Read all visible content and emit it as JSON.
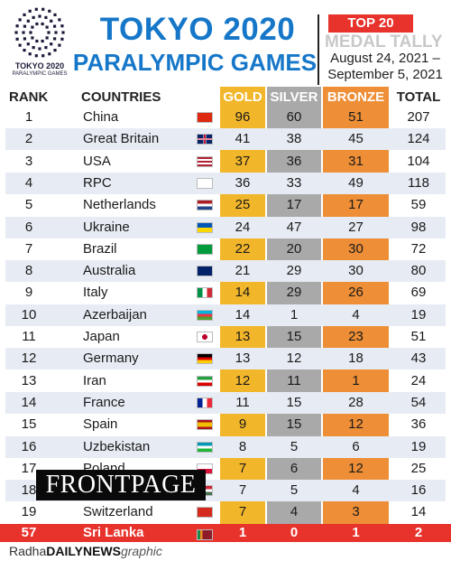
{
  "logo": {
    "line1": "TOKYO 2020",
    "line2": "PARALYMPIC GAMES",
    "ring_color": "#1b1b3a"
  },
  "title": {
    "line1": "TOKYO 2020",
    "line2": "PARALYMPIC GAMES"
  },
  "badge": {
    "top": "TOP 20",
    "subtitle": "MEDAL TALLY",
    "dates_line1": "August 24, 2021 –",
    "dates_line2": "September 5, 2021"
  },
  "colors": {
    "title": "#1677c9",
    "gold": "#f2b62a",
    "silver": "#a9a9a9",
    "bronze": "#ee8e36",
    "highlight": "#e8322c",
    "band": "#e7ecf4"
  },
  "chart_data": {
    "type": "table",
    "columns": [
      "RANK",
      "COUNTRIES",
      "GOLD",
      "SILVER",
      "BRONZE",
      "TOTAL"
    ],
    "rows": [
      {
        "rank": "1",
        "country": "China",
        "flag": "china-flag",
        "gold": 96,
        "silver": 60,
        "bronze": 51,
        "total": 207
      },
      {
        "rank": "2",
        "country": "Great Britain",
        "flag": "uk-flag",
        "gold": 41,
        "silver": 38,
        "bronze": 45,
        "total": 124
      },
      {
        "rank": "3",
        "country": "USA",
        "flag": "usa-flag",
        "gold": 37,
        "silver": 36,
        "bronze": 31,
        "total": 104
      },
      {
        "rank": "4",
        "country": "RPC",
        "flag": "rpc-flag",
        "gold": 36,
        "silver": 33,
        "bronze": 49,
        "total": 118
      },
      {
        "rank": "5",
        "country": "Netherlands",
        "flag": "netherlands-flag",
        "gold": 25,
        "silver": 17,
        "bronze": 17,
        "total": 59
      },
      {
        "rank": "6",
        "country": "Ukraine",
        "flag": "ukraine-flag",
        "gold": 24,
        "silver": 47,
        "bronze": 27,
        "total": 98
      },
      {
        "rank": "7",
        "country": "Brazil",
        "flag": "brazil-flag",
        "gold": 22,
        "silver": 20,
        "bronze": 30,
        "total": 72
      },
      {
        "rank": "8",
        "country": "Australia",
        "flag": "australia-flag",
        "gold": 21,
        "silver": 29,
        "bronze": 30,
        "total": 80
      },
      {
        "rank": "9",
        "country": "Italy",
        "flag": "italy-flag",
        "gold": 14,
        "silver": 29,
        "bronze": 26,
        "total": 69
      },
      {
        "rank": "10",
        "country": "Azerbaijan",
        "flag": "azerbaijan-flag",
        "gold": 14,
        "silver": 1,
        "bronze": 4,
        "total": 19
      },
      {
        "rank": "11",
        "country": "Japan",
        "flag": "japan-flag",
        "gold": 13,
        "silver": 15,
        "bronze": 23,
        "total": 51
      },
      {
        "rank": "12",
        "country": "Germany",
        "flag": "germany-flag",
        "gold": 13,
        "silver": 12,
        "bronze": 18,
        "total": 43
      },
      {
        "rank": "13",
        "country": "Iran",
        "flag": "iran-flag",
        "gold": 12,
        "silver": 11,
        "bronze": 1,
        "total": 24
      },
      {
        "rank": "14",
        "country": "France",
        "flag": "france-flag",
        "gold": 11,
        "silver": 15,
        "bronze": 28,
        "total": 54
      },
      {
        "rank": "15",
        "country": "Spain",
        "flag": "spain-flag",
        "gold": 9,
        "silver": 15,
        "bronze": 12,
        "total": 36
      },
      {
        "rank": "16",
        "country": "Uzbekistan",
        "flag": "uzbekistan-flag",
        "gold": 8,
        "silver": 5,
        "bronze": 6,
        "total": 19
      },
      {
        "rank": "17",
        "country": "Poland",
        "flag": "poland-flag",
        "gold": 7,
        "silver": 6,
        "bronze": 12,
        "total": 25
      },
      {
        "rank": "18",
        "country": "Hungary",
        "flag": "hungary-flag",
        "gold": 7,
        "silver": 5,
        "bronze": 4,
        "total": 16
      },
      {
        "rank": "19",
        "country": "Switzerland",
        "flag": "switzerland-flag",
        "gold": 7,
        "silver": 4,
        "bronze": 3,
        "total": 14
      }
    ],
    "highlight_row": {
      "rank": "57",
      "country": "Sri Lanka",
      "flag": "sri-lanka-flag",
      "gold": 1,
      "silver": 0,
      "bronze": 1,
      "total": 2
    }
  },
  "watermark": "FRONTPAGE",
  "credit": {
    "name": "Radha",
    "paper": "DAILY",
    "paper2": "NEWS",
    "suffix": "graphic"
  }
}
